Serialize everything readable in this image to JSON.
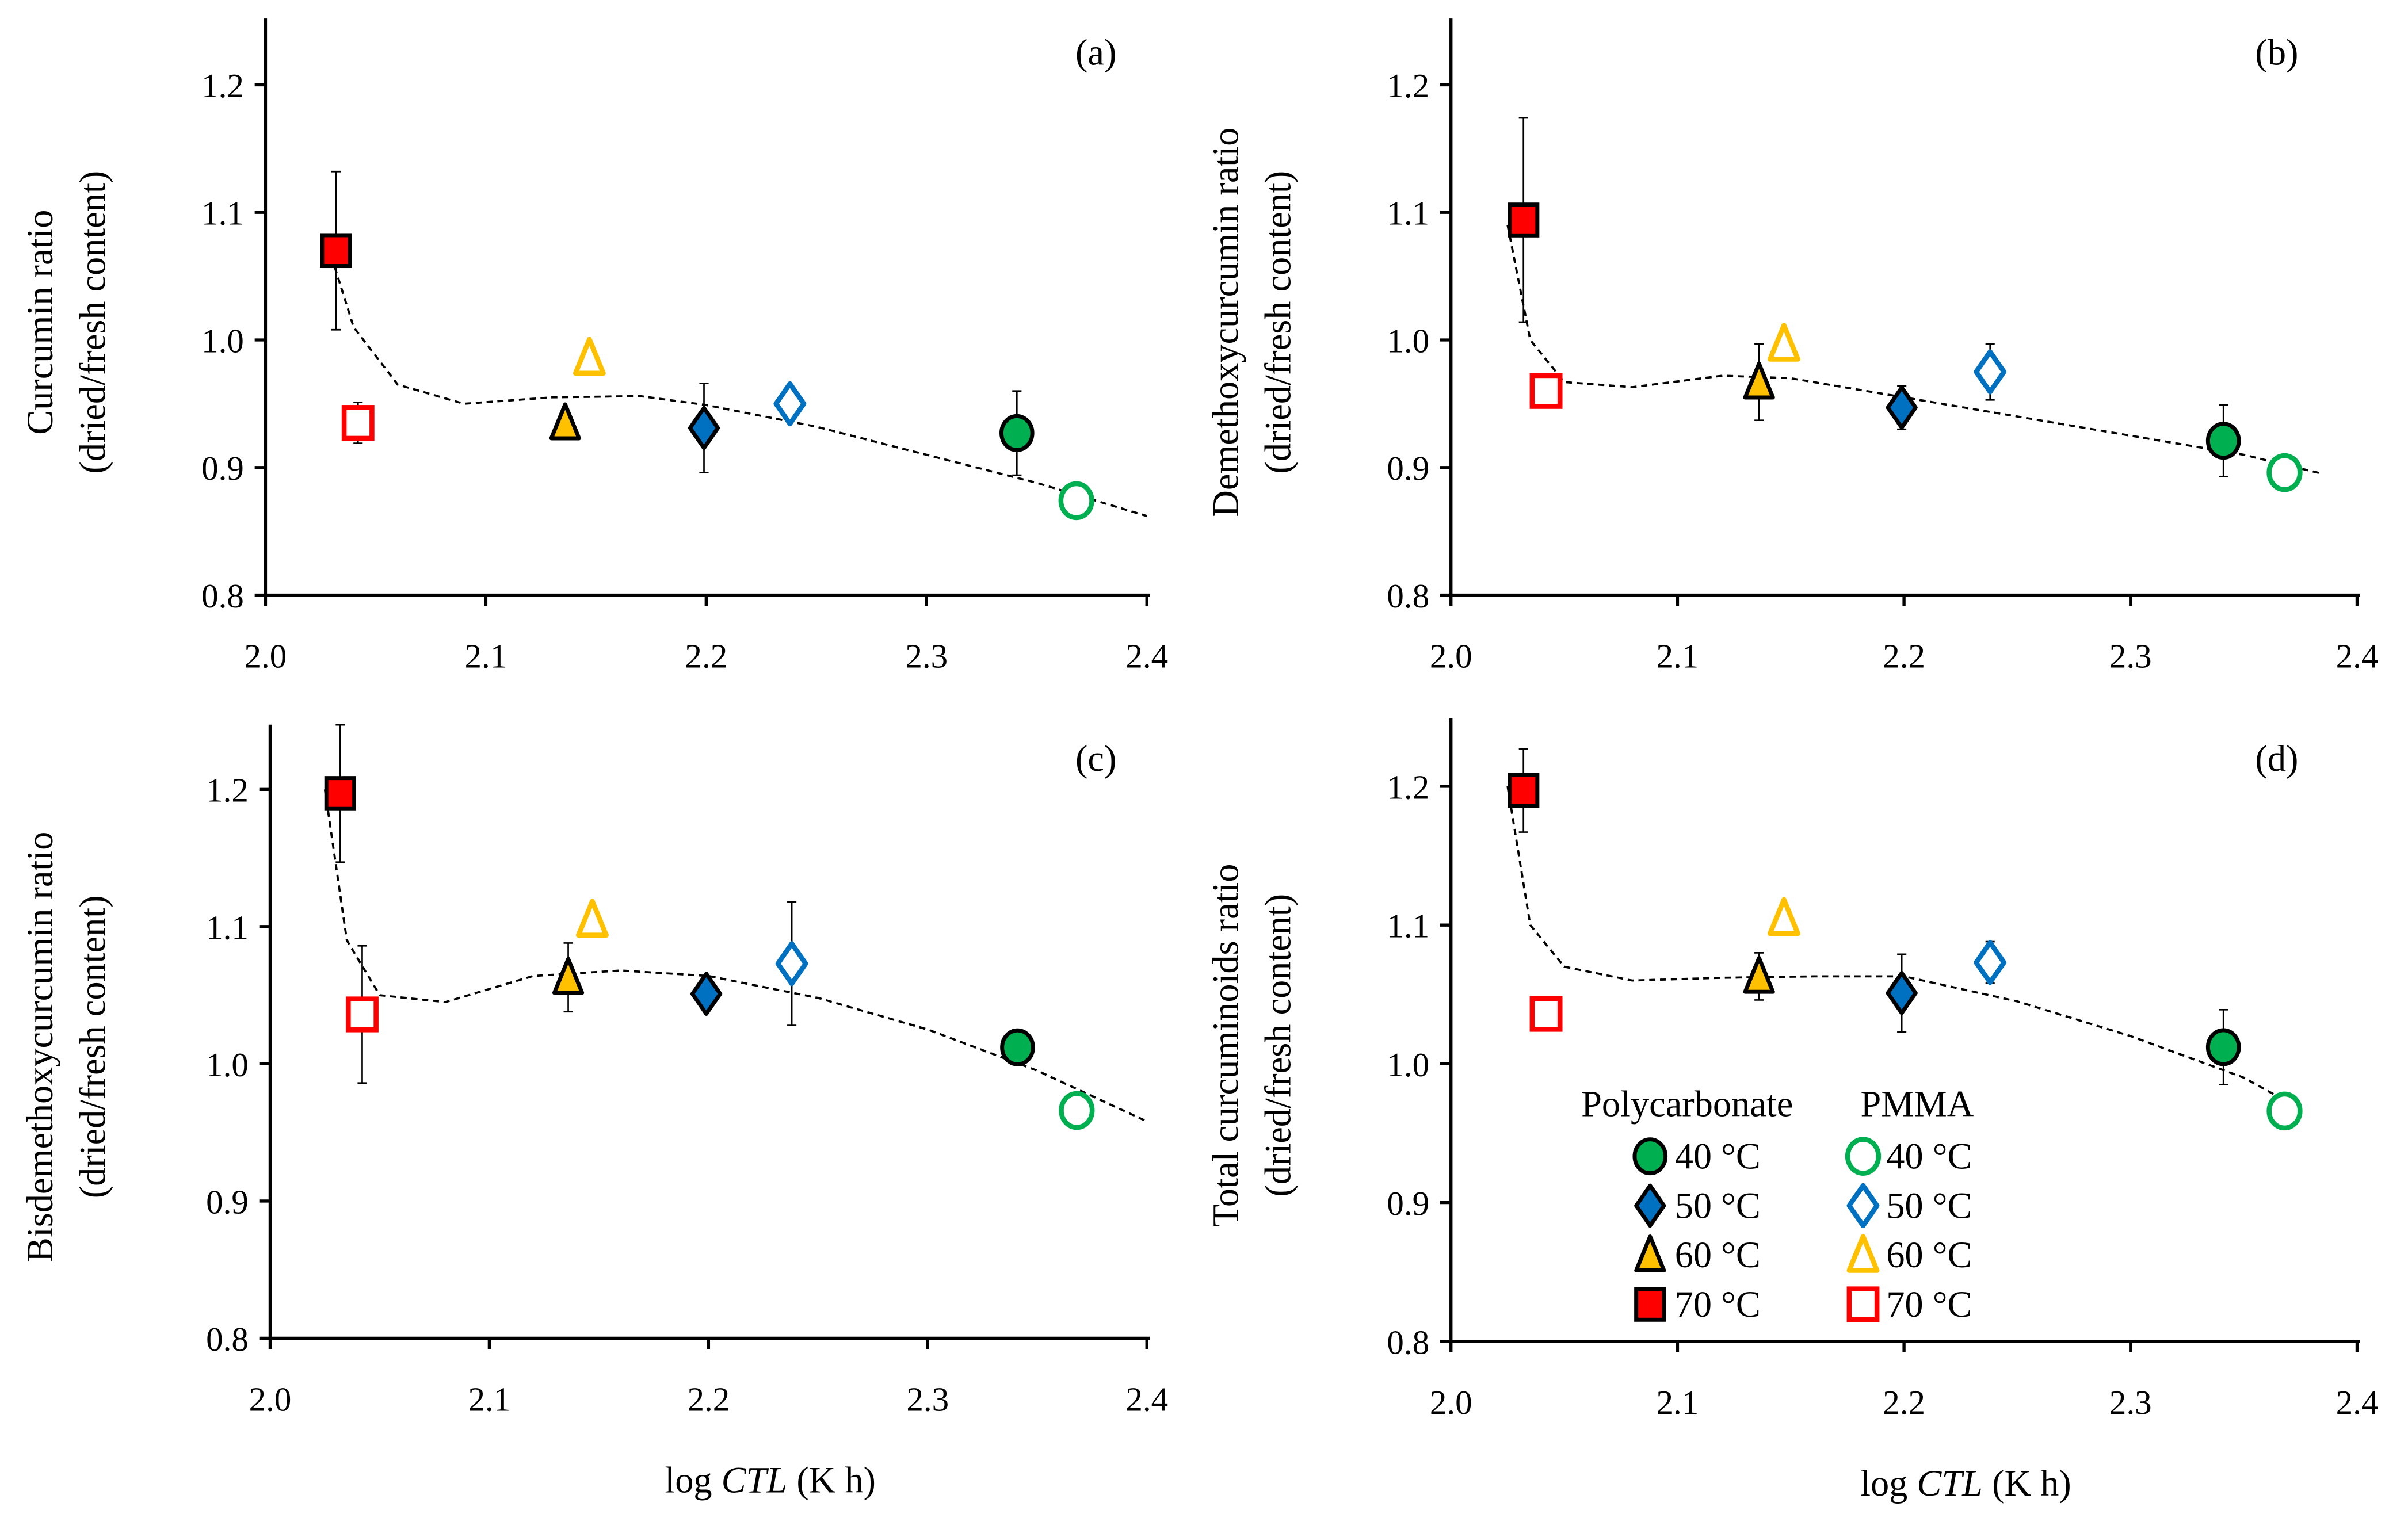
{
  "colors": {
    "c40": "#00B050",
    "c50": "#0070C0",
    "c60": "#FFC000",
    "c70": "#FF0000",
    "axis": "#000000"
  },
  "legend": {
    "groups": [
      "Polycarbonate",
      "PMMA"
    ],
    "items": [
      "40 °C",
      "50 °C",
      "60 °C",
      "70 °C"
    ]
  },
  "xlabel_parts": [
    "log ",
    "CTL",
    " (K h)"
  ],
  "chart_data": [
    {
      "type": "scatter",
      "panel_label": "(a)",
      "ylabel": [
        "Curcumin ratio",
        "(dried/fresh content)"
      ],
      "xlabel": "log CTL (K h)",
      "xlim": [
        2.0,
        2.4
      ],
      "ylim": [
        0.8,
        1.25
      ],
      "xticks": [
        "2.0",
        "2.1",
        "2.2",
        "2.3",
        "2.4"
      ],
      "yticks": [
        "0.8",
        "0.9",
        "1.0",
        "1.1",
        "1.2"
      ],
      "points": [
        {
          "material": "Polycarbonate",
          "temp": 70,
          "x": 2.032,
          "y": 1.07,
          "err": 0.062
        },
        {
          "material": "PMMA",
          "temp": 70,
          "x": 2.042,
          "y": 0.935,
          "err": 0.016
        },
        {
          "material": "Polycarbonate",
          "temp": 60,
          "x": 2.136,
          "y": 0.935,
          "err": 0
        },
        {
          "material": "PMMA",
          "temp": 60,
          "x": 2.147,
          "y": 0.986,
          "err": 0
        },
        {
          "material": "Polycarbonate",
          "temp": 50,
          "x": 2.199,
          "y": 0.931,
          "err": 0.035
        },
        {
          "material": "PMMA",
          "temp": 50,
          "x": 2.238,
          "y": 0.95,
          "err": 0
        },
        {
          "material": "Polycarbonate",
          "temp": 40,
          "x": 2.341,
          "y": 0.927,
          "err": 0.033
        },
        {
          "material": "PMMA",
          "temp": 40,
          "x": 2.368,
          "y": 0.874,
          "err": 0
        }
      ],
      "trend": [
        [
          2.03,
          1.065
        ],
        [
          2.04,
          1.01
        ],
        [
          2.06,
          0.965
        ],
        [
          2.09,
          0.95
        ],
        [
          2.13,
          0.955
        ],
        [
          2.17,
          0.956
        ],
        [
          2.2,
          0.949
        ],
        [
          2.25,
          0.932
        ],
        [
          2.3,
          0.91
        ],
        [
          2.35,
          0.888
        ],
        [
          2.4,
          0.862
        ]
      ]
    },
    {
      "type": "scatter",
      "panel_label": "(b)",
      "ylabel": [
        "Demethoxycurcumin ratio",
        "(dried/fresh content)"
      ],
      "xlabel": "log CTL (K h)",
      "xlim": [
        2.0,
        2.4
      ],
      "ylim": [
        0.8,
        1.25
      ],
      "xticks": [
        "2.0",
        "2.1",
        "2.2",
        "2.3",
        "2.4"
      ],
      "yticks": [
        "0.8",
        "0.9",
        "1.0",
        "1.1",
        "1.2"
      ],
      "points": [
        {
          "material": "Polycarbonate",
          "temp": 70,
          "x": 2.032,
          "y": 1.094,
          "err": 0.08
        },
        {
          "material": "PMMA",
          "temp": 70,
          "x": 2.042,
          "y": 0.96,
          "err": 0
        },
        {
          "material": "Polycarbonate",
          "temp": 60,
          "x": 2.136,
          "y": 0.967,
          "err": 0.03
        },
        {
          "material": "PMMA",
          "temp": 60,
          "x": 2.147,
          "y": 0.997,
          "err": 0
        },
        {
          "material": "Polycarbonate",
          "temp": 50,
          "x": 2.199,
          "y": 0.947,
          "err": 0.017
        },
        {
          "material": "PMMA",
          "temp": 50,
          "x": 2.238,
          "y": 0.975,
          "err": 0.022
        },
        {
          "material": "Polycarbonate",
          "temp": 40,
          "x": 2.341,
          "y": 0.921,
          "err": 0.028
        },
        {
          "material": "PMMA",
          "temp": 40,
          "x": 2.368,
          "y": 0.896,
          "err": 0
        }
      ],
      "trend": [
        [
          2.025,
          1.09
        ],
        [
          2.035,
          1.0
        ],
        [
          2.05,
          0.967
        ],
        [
          2.08,
          0.963
        ],
        [
          2.12,
          0.972
        ],
        [
          2.15,
          0.97
        ],
        [
          2.2,
          0.955
        ],
        [
          2.25,
          0.94
        ],
        [
          2.3,
          0.925
        ],
        [
          2.35,
          0.91
        ],
        [
          2.385,
          0.895
        ]
      ]
    },
    {
      "type": "scatter",
      "panel_label": "(c)",
      "ylabel": [
        "Bisdemethoxycurcumin ratio",
        "(dried/fresh content)"
      ],
      "xlabel": "log CTL (K h)",
      "xlim": [
        2.0,
        2.4
      ],
      "ylim": [
        0.8,
        1.25
      ],
      "xticks": [
        "2.0",
        "2.1",
        "2.2",
        "2.3",
        "2.4"
      ],
      "yticks": [
        "0.8",
        "0.9",
        "1.0",
        "1.1",
        "1.2"
      ],
      "points": [
        {
          "material": "Polycarbonate",
          "temp": 70,
          "x": 2.032,
          "y": 1.197,
          "err": 0.05
        },
        {
          "material": "PMMA",
          "temp": 70,
          "x": 2.042,
          "y": 1.036,
          "err": 0.05
        },
        {
          "material": "Polycarbonate",
          "temp": 60,
          "x": 2.136,
          "y": 1.063,
          "err": 0.025
        },
        {
          "material": "PMMA",
          "temp": 60,
          "x": 2.147,
          "y": 1.105,
          "err": 0
        },
        {
          "material": "Polycarbonate",
          "temp": 50,
          "x": 2.199,
          "y": 1.051,
          "err": 0
        },
        {
          "material": "PMMA",
          "temp": 50,
          "x": 2.238,
          "y": 1.073,
          "err": 0.045
        },
        {
          "material": "Polycarbonate",
          "temp": 40,
          "x": 2.341,
          "y": 1.012,
          "err": 0
        },
        {
          "material": "PMMA",
          "temp": 40,
          "x": 2.368,
          "y": 0.966,
          "err": 0
        }
      ],
      "trend": [
        [
          2.025,
          1.2
        ],
        [
          2.035,
          1.09
        ],
        [
          2.05,
          1.05
        ],
        [
          2.08,
          1.045
        ],
        [
          2.12,
          1.064
        ],
        [
          2.16,
          1.068
        ],
        [
          2.2,
          1.064
        ],
        [
          2.25,
          1.048
        ],
        [
          2.3,
          1.025
        ],
        [
          2.35,
          0.995
        ],
        [
          2.4,
          0.958
        ]
      ]
    },
    {
      "type": "scatter",
      "panel_label": "(d)",
      "ylabel": [
        "Total curcuminoids ratio",
        "(dried/fresh content)"
      ],
      "xlabel": "log CTL (K h)",
      "xlim": [
        2.0,
        2.4
      ],
      "ylim": [
        0.8,
        1.25
      ],
      "xticks": [
        "2.0",
        "2.1",
        "2.2",
        "2.3",
        "2.4"
      ],
      "yticks": [
        "0.8",
        "0.9",
        "1.0",
        "1.1",
        "1.2"
      ],
      "points": [
        {
          "material": "Polycarbonate",
          "temp": 70,
          "x": 2.032,
          "y": 1.197,
          "err": 0.03
        },
        {
          "material": "PMMA",
          "temp": 70,
          "x": 2.042,
          "y": 1.036,
          "err": 0
        },
        {
          "material": "Polycarbonate",
          "temp": 60,
          "x": 2.136,
          "y": 1.063,
          "err": 0.017
        },
        {
          "material": "PMMA",
          "temp": 60,
          "x": 2.147,
          "y": 1.105,
          "err": 0
        },
        {
          "material": "Polycarbonate",
          "temp": 50,
          "x": 2.199,
          "y": 1.051,
          "err": 0.028
        },
        {
          "material": "PMMA",
          "temp": 50,
          "x": 2.238,
          "y": 1.073,
          "err": 0.015
        },
        {
          "material": "Polycarbonate",
          "temp": 40,
          "x": 2.341,
          "y": 1.012,
          "err": 0.027
        },
        {
          "material": "PMMA",
          "temp": 40,
          "x": 2.368,
          "y": 0.966,
          "err": 0
        }
      ],
      "trend": [
        [
          2.025,
          1.2
        ],
        [
          2.035,
          1.1
        ],
        [
          2.05,
          1.07
        ],
        [
          2.08,
          1.06
        ],
        [
          2.12,
          1.062
        ],
        [
          2.16,
          1.063
        ],
        [
          2.2,
          1.063
        ],
        [
          2.25,
          1.045
        ],
        [
          2.3,
          1.02
        ],
        [
          2.35,
          0.99
        ],
        [
          2.37,
          0.972
        ]
      ]
    }
  ]
}
